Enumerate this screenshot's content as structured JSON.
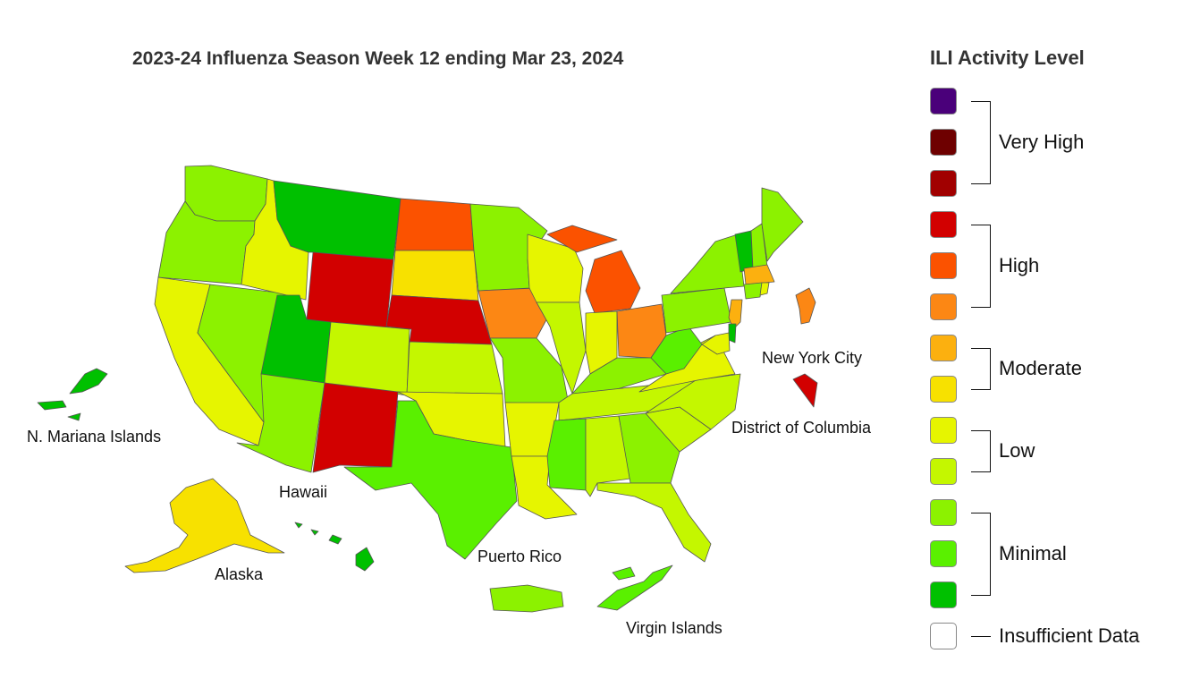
{
  "title": "2023-24 Influenza Season Week 12 ending Mar 23, 2024",
  "legend": {
    "title": "ILI Activity Level",
    "levels": [
      {
        "level": 13,
        "color": "#4a007a"
      },
      {
        "level": 12,
        "color": "#6e0000"
      },
      {
        "level": 11,
        "color": "#a10000"
      },
      {
        "level": 10,
        "color": "#d20000"
      },
      {
        "level": 9,
        "color": "#fb5200"
      },
      {
        "level": 8,
        "color": "#fc8714"
      },
      {
        "level": 7,
        "color": "#fcb00f"
      },
      {
        "level": 6,
        "color": "#f7e100"
      },
      {
        "level": 5,
        "color": "#e6f500"
      },
      {
        "level": 4,
        "color": "#c4f700"
      },
      {
        "level": 3,
        "color": "#8cf200"
      },
      {
        "level": 2,
        "color": "#5af000"
      },
      {
        "level": 1,
        "color": "#00c000"
      },
      {
        "level": 0,
        "color": "#ffffff"
      }
    ],
    "groups": {
      "very_high": "Very High",
      "high": "High",
      "moderate": "Moderate",
      "low": "Low",
      "minimal": "Minimal",
      "insufficient": "Insufficient Data"
    }
  },
  "labels": {
    "nyc": "New York City",
    "dc": "District of Columbia",
    "nmi": "N. Mariana Islands",
    "hawaii": "Hawaii",
    "alaska": "Alaska",
    "puerto_rico": "Puerto Rico",
    "virgin_islands": "Virgin Islands"
  },
  "regions": {
    "WA": {
      "level": 3,
      "color": "#8cf200"
    },
    "OR": {
      "level": 3,
      "color": "#8cf200"
    },
    "CA": {
      "level": 5,
      "color": "#e6f500"
    },
    "NV": {
      "level": 3,
      "color": "#8cf200"
    },
    "ID": {
      "level": 5,
      "color": "#e6f500"
    },
    "MT": {
      "level": 1,
      "color": "#00c000"
    },
    "WY": {
      "level": 10,
      "color": "#d20000"
    },
    "UT": {
      "level": 1,
      "color": "#00c000"
    },
    "AZ": {
      "level": 3,
      "color": "#8cf200"
    },
    "CO": {
      "level": 4,
      "color": "#c4f700"
    },
    "NM": {
      "level": 10,
      "color": "#d20000"
    },
    "ND": {
      "level": 9,
      "color": "#fb5200"
    },
    "SD": {
      "level": 6,
      "color": "#f7e100"
    },
    "NE": {
      "level": 10,
      "color": "#d20000"
    },
    "KS": {
      "level": 4,
      "color": "#c4f700"
    },
    "OK": {
      "level": 5,
      "color": "#e6f500"
    },
    "TX": {
      "level": 2,
      "color": "#5af000"
    },
    "MN": {
      "level": 3,
      "color": "#8cf200"
    },
    "IA": {
      "level": 8,
      "color": "#fc8714"
    },
    "MO": {
      "level": 3,
      "color": "#8cf200"
    },
    "AR": {
      "level": 5,
      "color": "#e6f500"
    },
    "LA": {
      "level": 5,
      "color": "#e6f500"
    },
    "WI": {
      "level": 5,
      "color": "#e6f500"
    },
    "IL": {
      "level": 4,
      "color": "#c4f700"
    },
    "MI": {
      "level": 9,
      "color": "#fb5200"
    },
    "IN": {
      "level": 5,
      "color": "#e6f500"
    },
    "OH": {
      "level": 8,
      "color": "#fc8714"
    },
    "KY": {
      "level": 3,
      "color": "#8cf200"
    },
    "TN": {
      "level": 4,
      "color": "#c4f700"
    },
    "MS": {
      "level": 2,
      "color": "#5af000"
    },
    "AL": {
      "level": 4,
      "color": "#c4f700"
    },
    "GA": {
      "level": 3,
      "color": "#8cf200"
    },
    "FL": {
      "level": 4,
      "color": "#c4f700"
    },
    "SC": {
      "level": 4,
      "color": "#c4f700"
    },
    "NC": {
      "level": 4,
      "color": "#c4f700"
    },
    "VA": {
      "level": 5,
      "color": "#e6f500"
    },
    "WV": {
      "level": 2,
      "color": "#5af000"
    },
    "PA": {
      "level": 3,
      "color": "#8cf200"
    },
    "NY": {
      "level": 3,
      "color": "#8cf200"
    },
    "VT": {
      "level": 1,
      "color": "#00c000"
    },
    "NH": {
      "level": 3,
      "color": "#8cf200"
    },
    "ME": {
      "level": 3,
      "color": "#8cf200"
    },
    "MA": {
      "level": 7,
      "color": "#fcb00f"
    },
    "RI": {
      "level": 5,
      "color": "#e6f500"
    },
    "CT": {
      "level": 3,
      "color": "#8cf200"
    },
    "NJ": {
      "level": 7,
      "color": "#fcb00f"
    },
    "DE": {
      "level": 1,
      "color": "#00c000"
    },
    "MD": {
      "level": 5,
      "color": "#e6f500"
    },
    "NYC": {
      "level": 8,
      "color": "#fc8714"
    },
    "DC": {
      "level": 10,
      "color": "#d20000"
    },
    "AK": {
      "level": 6,
      "color": "#f7e100"
    },
    "HI": {
      "level": 1,
      "color": "#00c000"
    },
    "PR": {
      "level": 3,
      "color": "#8cf200"
    },
    "VI": {
      "level": 2,
      "color": "#5af000"
    },
    "MP": {
      "level": 1,
      "color": "#00c000"
    }
  }
}
